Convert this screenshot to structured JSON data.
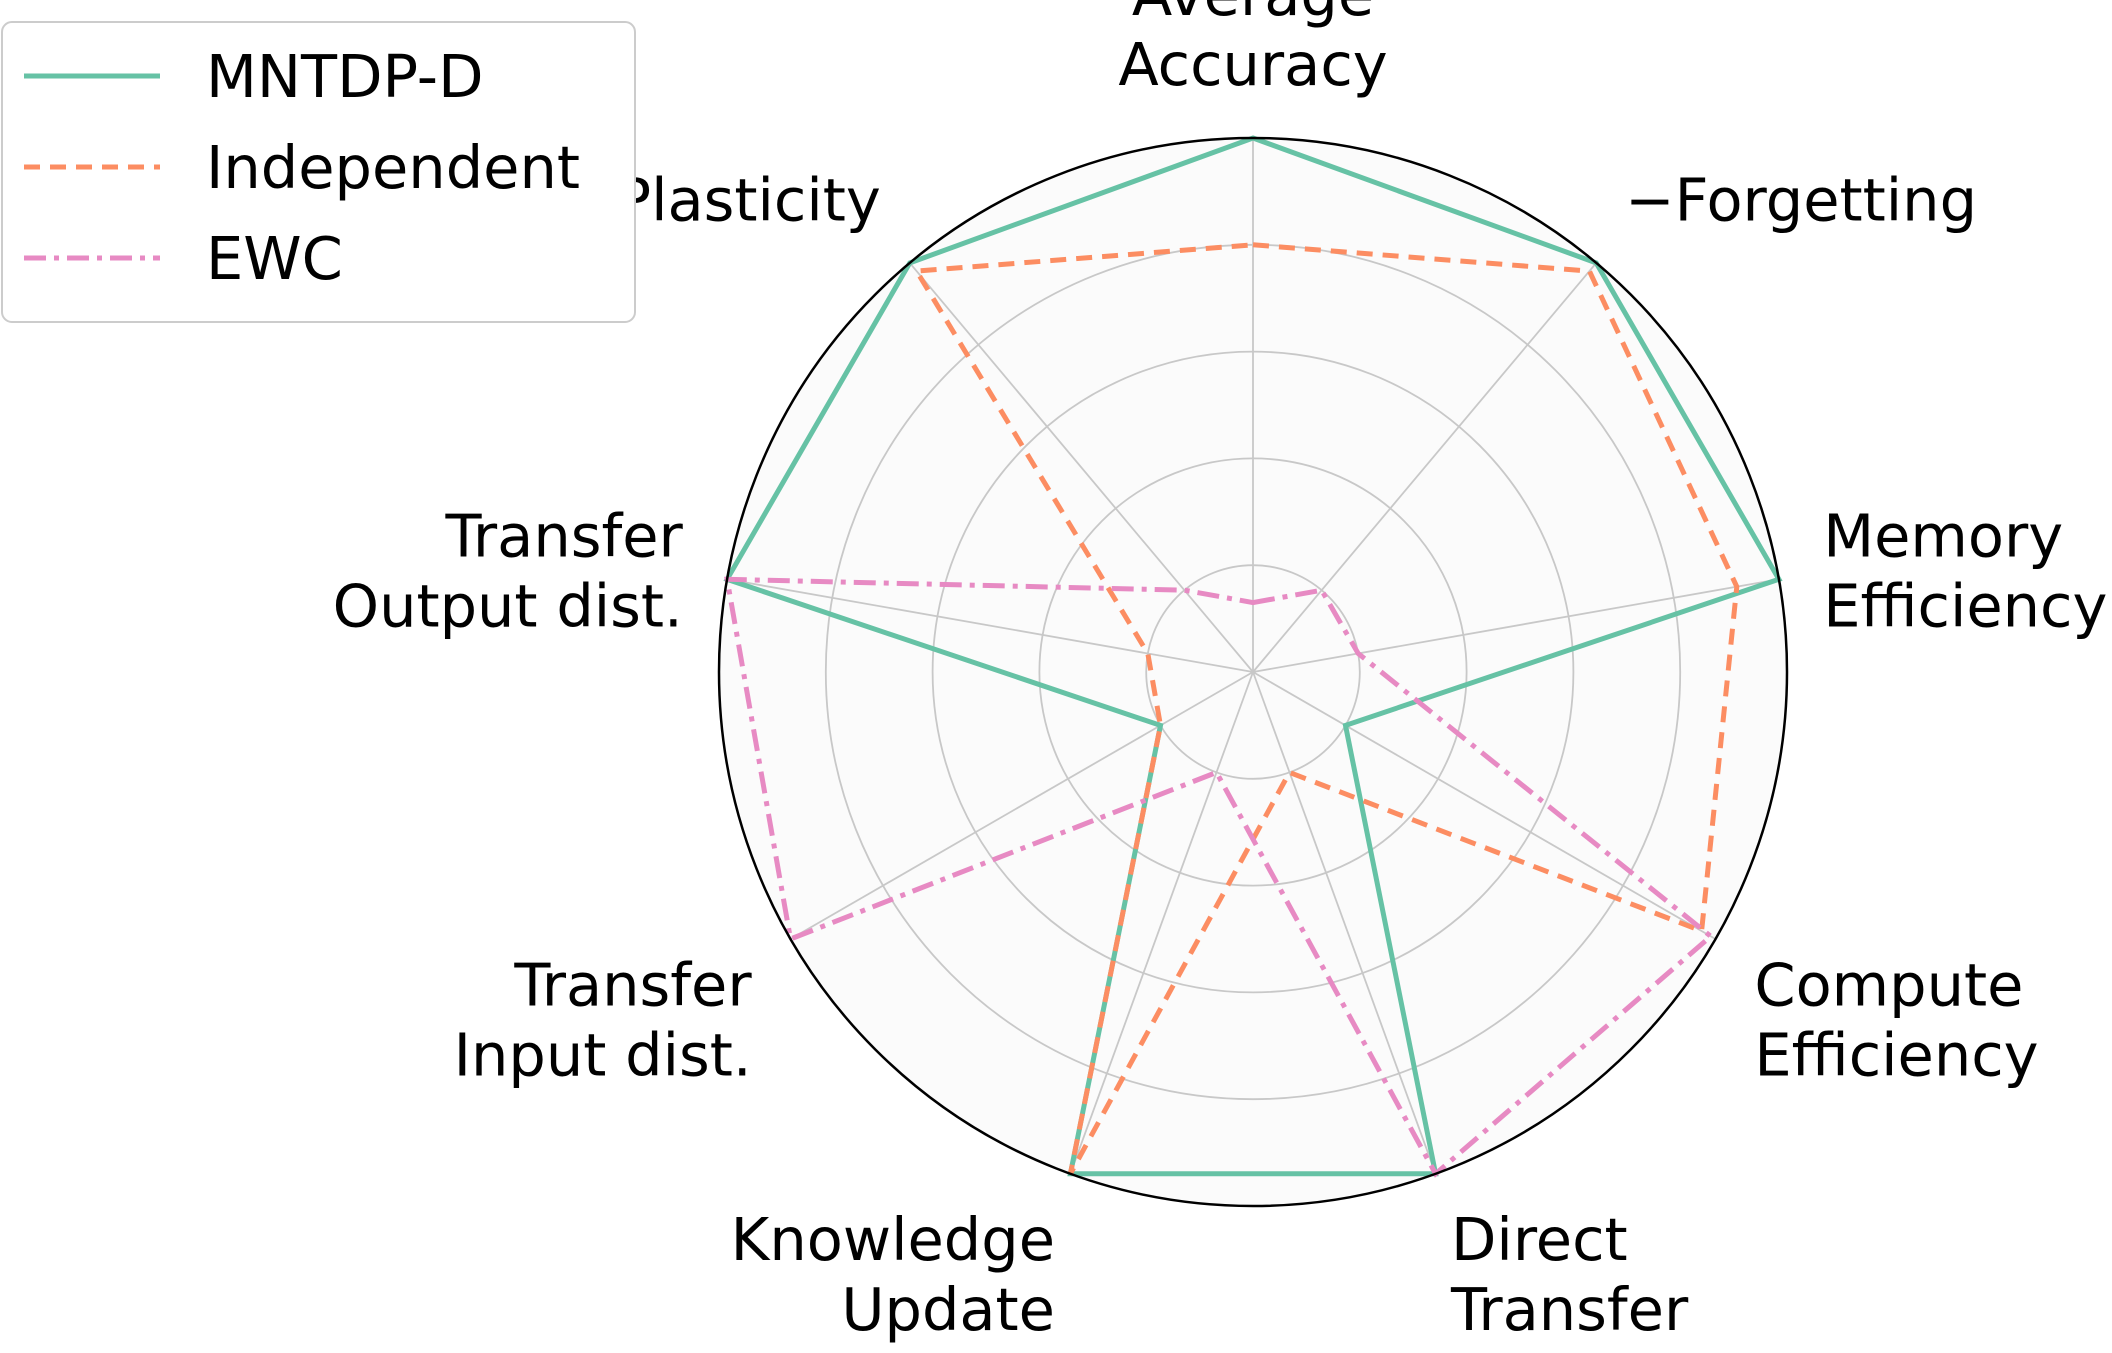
{
  "chart_data": {
    "type": "radar",
    "title": "",
    "axes": [
      {
        "label_lines": [
          "Average",
          "Accuracy"
        ]
      },
      {
        "label_lines": [
          "−Forgetting"
        ]
      },
      {
        "label_lines": [
          "Memory",
          "Efficiency"
        ]
      },
      {
        "label_lines": [
          "Compute",
          "Efficiency"
        ]
      },
      {
        "label_lines": [
          "Direct",
          "Transfer"
        ]
      },
      {
        "label_lines": [
          "Knowledge",
          "Update"
        ]
      },
      {
        "label_lines": [
          "Transfer",
          "Input dist."
        ]
      },
      {
        "label_lines": [
          "Transfer",
          "Output dist."
        ]
      },
      {
        "label_lines": [
          "Plasticity"
        ]
      }
    ],
    "r_range": [
      0,
      1
    ],
    "ring_levels": [
      0.2,
      0.4,
      0.6,
      0.8,
      1.0
    ],
    "grid": true,
    "legend_position": "top-left",
    "series": [
      {
        "name": "MNTDP-D",
        "color": "#66c2a5",
        "dash": "solid",
        "values": [
          1.0,
          1.0,
          1.0,
          0.2,
          1.0,
          1.0,
          0.2,
          1.0,
          1.0
        ]
      },
      {
        "name": "Independent",
        "color": "#fc8d62",
        "dash": "dashed",
        "values": [
          0.8,
          0.98,
          0.92,
          0.97,
          0.2,
          1.0,
          0.2,
          0.2,
          0.98
        ]
      },
      {
        "name": "EWC",
        "color": "#e78ac3",
        "dash": "dashdot",
        "values": [
          0.13,
          0.2,
          0.2,
          0.99,
          1.0,
          0.2,
          1.0,
          1.0,
          0.2
        ]
      }
    ]
  }
}
